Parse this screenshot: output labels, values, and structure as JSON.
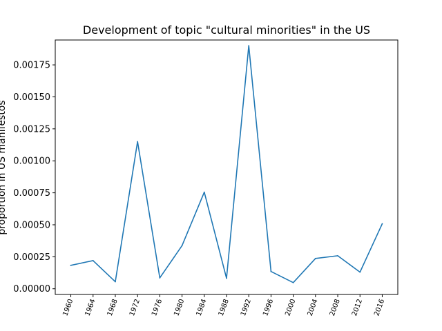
{
  "chart_data": {
    "type": "line",
    "title": "Development of topic \"cultural minorities\" in the US",
    "xlabel": "",
    "ylabel": "proportion in US manifestos",
    "categories": [
      "1960",
      "1964",
      "1968",
      "1972",
      "1976",
      "1980",
      "1984",
      "1988",
      "1992",
      "1996",
      "2000",
      "2004",
      "2008",
      "2012",
      "2016"
    ],
    "series": [
      {
        "values": [
          0.000183,
          0.00022,
          5.5e-05,
          0.00115,
          8.5e-05,
          0.000337,
          0.000755,
          8.2e-05,
          0.0019,
          0.000135,
          4.8e-05,
          0.000237,
          0.000258,
          0.00013,
          0.000508
        ],
        "color": "#1f77b4"
      }
    ],
    "yticks": [
      "0.00000",
      "0.00025",
      "0.00050",
      "0.00075",
      "0.00100",
      "0.00125",
      "0.00150",
      "0.00175"
    ],
    "ylim": [
      -4.45e-05,
      0.0019445
    ],
    "grid": false,
    "legend": "none"
  }
}
